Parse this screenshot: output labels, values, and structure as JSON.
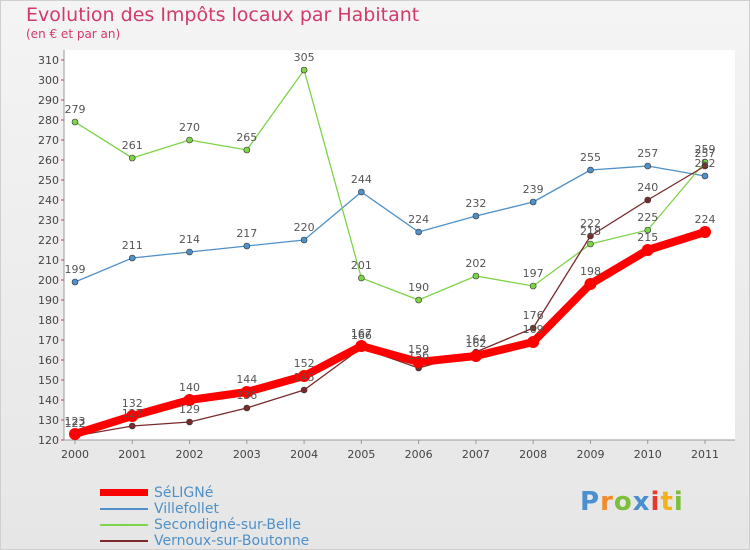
{
  "title": "Evolution des Impôts locaux par Habitant",
  "subtitle": "(en € et par an)",
  "logo_text": "Proxiti",
  "chart_data": {
    "type": "line",
    "title": "Evolution des Impôts locaux par Habitant",
    "subtitle": "(en € et par an)",
    "xlabel": "",
    "ylabel": "",
    "ylim": [
      120,
      310
    ],
    "yticks": [
      120,
      130,
      140,
      150,
      160,
      170,
      180,
      190,
      200,
      210,
      220,
      230,
      240,
      250,
      260,
      270,
      280,
      290,
      300,
      310
    ],
    "x": [
      "2000",
      "2001",
      "2002",
      "2003",
      "2004",
      "2005",
      "2006",
      "2007",
      "2008",
      "2009",
      "2010",
      "2011"
    ],
    "grid": false,
    "legend_position": "bottom",
    "series": [
      {
        "name": "SéLIGNé",
        "color": "#ff0000",
        "values": [
          123,
          132,
          140,
          144,
          152,
          167,
          159,
          162,
          169,
          198,
          215,
          224
        ],
        "labels": [
          "123",
          "132",
          "140",
          "144",
          "152",
          "167",
          "159",
          "162",
          "169",
          "198",
          "215",
          "224"
        ]
      },
      {
        "name": "Villefollet",
        "color": "#4f90c8",
        "values": [
          199,
          211,
          214,
          217,
          220,
          244,
          224,
          232,
          239,
          255,
          257,
          252
        ],
        "labels": [
          "199",
          "211",
          "214",
          "217",
          "220",
          "244",
          "224",
          "232",
          "239",
          "255",
          "257",
          "252"
        ]
      },
      {
        "name": "Secondigné-sur-Belle",
        "color": "#7ed348",
        "values": [
          279,
          261,
          270,
          265,
          305,
          201,
          190,
          202,
          197,
          218,
          225,
          259
        ],
        "labels": [
          "279",
          "261",
          "270",
          "265",
          "305",
          "201",
          "190",
          "202",
          "197",
          "218",
          "225",
          "259"
        ]
      },
      {
        "name": "Vernoux-sur-Boutonne",
        "color": "#7a2a2a",
        "values": [
          122,
          127,
          129,
          136,
          145,
          166,
          156,
          164,
          176,
          222,
          240,
          257
        ],
        "labels": [
          "122",
          "127",
          "129",
          "136",
          "145",
          "166",
          "156",
          "164",
          "176",
          "222",
          "240",
          "257"
        ]
      }
    ]
  }
}
